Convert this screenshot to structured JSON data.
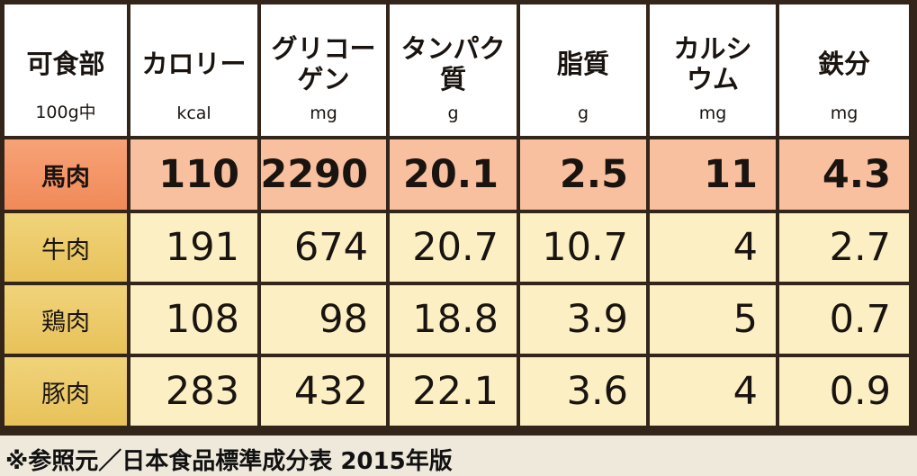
{
  "table": {
    "header": [
      {
        "lines": [
          "可食部"
        ],
        "unit": "100g中"
      },
      {
        "lines": [
          "カロリー"
        ],
        "unit": "kcal"
      },
      {
        "lines": [
          "グリコー",
          "ゲン"
        ],
        "unit": "mg"
      },
      {
        "lines": [
          "タンパク",
          "質"
        ],
        "unit": "g"
      },
      {
        "lines": [
          "脂質"
        ],
        "unit": "g"
      },
      {
        "lines": [
          "カルシ",
          "ウム"
        ],
        "unit": "mg"
      },
      {
        "lines": [
          "鉄分"
        ],
        "unit": "mg"
      }
    ],
    "rows": [
      [
        "馬肉",
        "110",
        "2290",
        "20.1",
        "2.5",
        "11",
        "4.3"
      ],
      [
        "牛肉",
        "191",
        "674",
        "20.7",
        "10.7",
        "4",
        "2.7"
      ],
      [
        "鶏肉",
        "108",
        "98",
        "18.8",
        "3.9",
        "5",
        "0.7"
      ],
      [
        "豚肉",
        "283",
        "432",
        "22.1",
        "3.6",
        "4",
        "0.9"
      ]
    ]
  },
  "footnote": "※参照元／日本食品標準成分表 2015年版"
}
